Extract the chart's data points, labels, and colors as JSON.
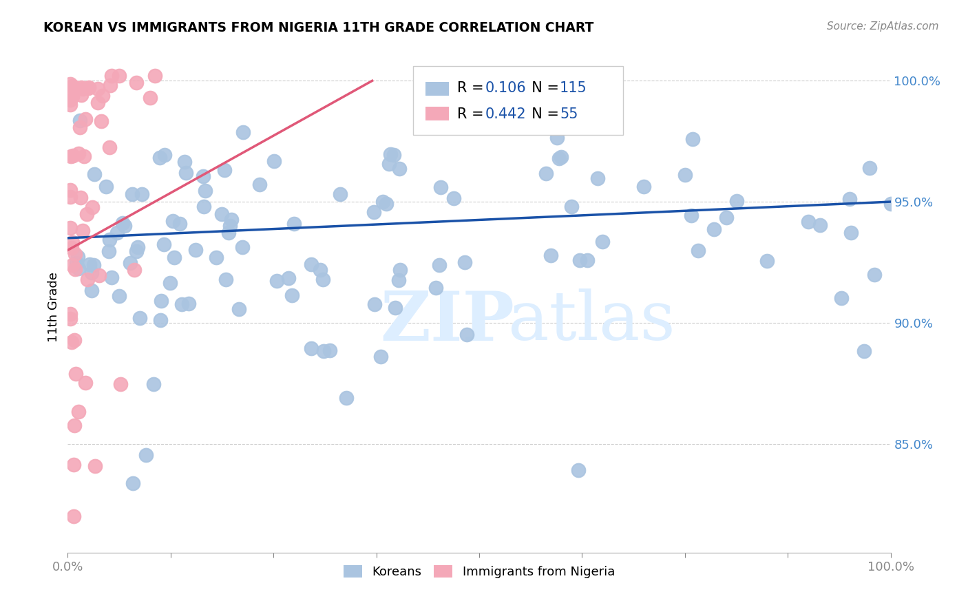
{
  "title": "KOREAN VS IMMIGRANTS FROM NIGERIA 11TH GRADE CORRELATION CHART",
  "source": "Source: ZipAtlas.com",
  "ylabel": "11th Grade",
  "xlim": [
    0.0,
    1.0
  ],
  "ylim": [
    0.805,
    1.008
  ],
  "yticks": [
    0.85,
    0.9,
    0.95,
    1.0
  ],
  "ytick_labels": [
    "85.0%",
    "90.0%",
    "95.0%",
    "100.0%"
  ],
  "blue_R": "0.106",
  "blue_N": "115",
  "pink_R": "0.442",
  "pink_N": "55",
  "blue_color": "#aac4e0",
  "pink_color": "#f4a8b8",
  "blue_line_color": "#1a52a8",
  "pink_line_color": "#e05878",
  "tick_color": "#4488cc",
  "watermark_color": "#ddeeff",
  "blue_line_x0": 0.0,
  "blue_line_x1": 1.0,
  "blue_line_y0": 0.935,
  "blue_line_y1": 0.95,
  "pink_line_x0": 0.0,
  "pink_line_x1": 0.37,
  "pink_line_y0": 0.93,
  "pink_line_y1": 1.0
}
